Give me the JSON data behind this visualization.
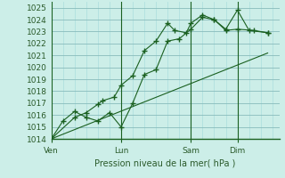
{
  "xlabel": "Pression niveau de la mer( hPa )",
  "ylim": [
    1014,
    1025.5
  ],
  "yticks": [
    1014,
    1015,
    1016,
    1017,
    1018,
    1019,
    1020,
    1021,
    1022,
    1023,
    1024,
    1025
  ],
  "bg_color": "#cceee8",
  "grid_color_major": "#88bbbb",
  "grid_color_minor": "#aadddd",
  "line_color": "#1a6020",
  "border_color": "#1a6020",
  "xtick_labels": [
    "Ven",
    "Lun",
    "Sam",
    "Dim"
  ],
  "xtick_positions": [
    0,
    3,
    6,
    8
  ],
  "xlim": [
    0,
    9.8
  ],
  "series1_x": [
    0,
    1,
    1.5,
    2,
    2.2,
    2.7,
    3,
    3.5,
    4,
    4.5,
    5,
    5.3,
    5.8,
    6,
    6.5,
    7,
    7.5,
    8,
    8.5,
    9.3
  ],
  "series1_y": [
    1014.0,
    1015.8,
    1016.2,
    1016.9,
    1017.2,
    1017.5,
    1018.5,
    1019.3,
    1021.4,
    1022.2,
    1023.7,
    1023.1,
    1022.9,
    1023.7,
    1024.4,
    1024.0,
    1023.2,
    1024.8,
    1023.1,
    1022.9
  ],
  "series2_x": [
    0,
    0.5,
    1,
    1.5,
    2,
    2.5,
    3,
    3.5,
    4,
    4.5,
    5,
    5.5,
    6,
    6.5,
    7,
    7.5,
    8,
    8.7,
    9.3
  ],
  "series2_y": [
    1014.0,
    1015.5,
    1016.3,
    1015.8,
    1015.5,
    1016.2,
    1015.0,
    1017.0,
    1019.4,
    1019.8,
    1022.2,
    1022.4,
    1023.2,
    1024.2,
    1024.0,
    1023.1,
    1023.2,
    1023.1,
    1022.9
  ],
  "series3_x": [
    0,
    9.3
  ],
  "series3_y": [
    1014.0,
    1021.2
  ]
}
